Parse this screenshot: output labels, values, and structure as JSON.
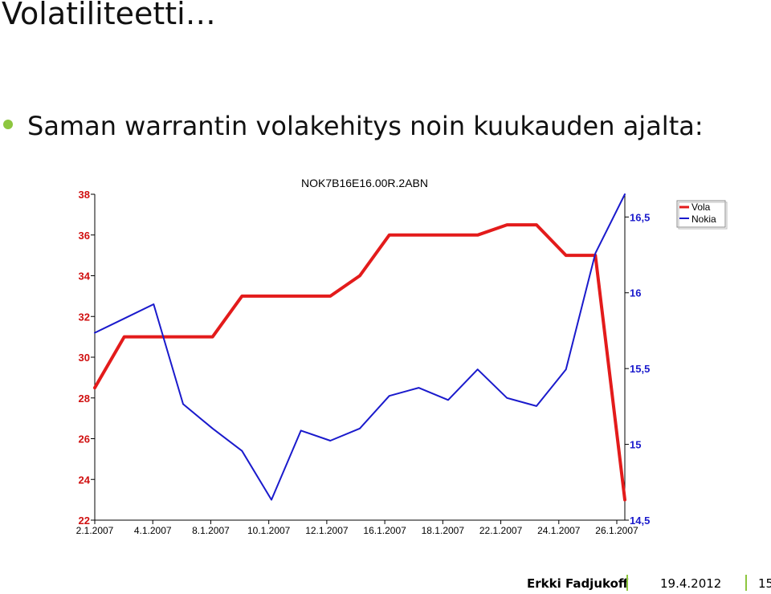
{
  "slide": {
    "title": "Volatiliteetti…",
    "bullet": "Saman warrantin volakehitys noin kuukauden ajalta:"
  },
  "footer": {
    "author": "Erkki Fadjukoff",
    "date": "19.4.2012",
    "page": "15"
  },
  "colors": {
    "vola": "#e31b1b",
    "nokia": "#1a1acc",
    "bullet": "#8dc63f",
    "left_axis_text": "#d01010",
    "right_axis_text": "#1a1acc"
  },
  "chart_data": {
    "type": "line",
    "title": "NOK7B16E16.00R.2ABN",
    "legend_position": "top-right",
    "grid": false,
    "x_tick_labels": [
      "2.1.2007",
      "4.1.2007",
      "8.1.2007",
      "10.1.2007",
      "12.1.2007",
      "16.1.2007",
      "18.1.2007",
      "22.1.2007",
      "24.1.2007",
      "26.1.2007"
    ],
    "y_left": {
      "ylim": [
        22,
        38
      ],
      "ticks": [
        "22",
        "24",
        "26",
        "28",
        "30",
        "32",
        "34",
        "36",
        "38"
      ]
    },
    "y_right": {
      "ylim": [
        14.5,
        16.65
      ],
      "ticks": [
        "14,5",
        "15",
        "15,5",
        "16",
        "16,5"
      ]
    },
    "x_index_range": [
      0,
      18
    ],
    "series": [
      {
        "name": "Vola",
        "axis": "left",
        "x": [
          0,
          1,
          2,
          3,
          4,
          5,
          6,
          7,
          8,
          9,
          10,
          11,
          12,
          13,
          14,
          15,
          16,
          17,
          18
        ],
        "values": [
          28.5,
          31,
          31,
          31,
          31,
          33,
          33,
          33,
          33,
          34,
          36,
          36,
          36,
          36,
          36.5,
          36.5,
          35,
          35,
          23
        ]
      },
      {
        "name": "Nokia",
        "axis": "left",
        "x": [
          0,
          1,
          2,
          3,
          4,
          5,
          6,
          7,
          8,
          9,
          10,
          11,
          12,
          13,
          14,
          15,
          16,
          17,
          18
        ],
        "values": [
          31.2,
          31.9,
          32.6,
          27.7,
          26.5,
          25.4,
          23.0,
          26.4,
          25.9,
          26.5,
          28.1,
          28.5,
          27.9,
          29.4,
          28.0,
          27.6,
          29.4,
          35.1,
          38.0
        ]
      }
    ]
  }
}
